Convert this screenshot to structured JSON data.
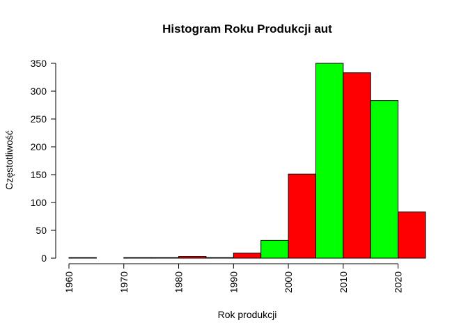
{
  "chart_data": {
    "type": "bar",
    "title": "Histogram Roku Produkcji aut",
    "xlabel": "Rok produkcji",
    "ylabel": "Częstotliwość",
    "bins": [
      {
        "start": 1960,
        "end": 1965,
        "count": 1
      },
      {
        "start": 1965,
        "end": 1970,
        "count": 0
      },
      {
        "start": 1970,
        "end": 1975,
        "count": 1
      },
      {
        "start": 1975,
        "end": 1980,
        "count": 1
      },
      {
        "start": 1980,
        "end": 1985,
        "count": 3
      },
      {
        "start": 1985,
        "end": 1990,
        "count": 1
      },
      {
        "start": 1990,
        "end": 1995,
        "count": 9
      },
      {
        "start": 1995,
        "end": 2000,
        "count": 32
      },
      {
        "start": 2000,
        "end": 2005,
        "count": 151
      },
      {
        "start": 2005,
        "end": 2010,
        "count": 350
      },
      {
        "start": 2010,
        "end": 2015,
        "count": 333
      },
      {
        "start": 2015,
        "end": 2020,
        "count": 283
      },
      {
        "start": 2020,
        "end": 2025,
        "count": 83
      }
    ],
    "bar_colors": [
      "#ff0000",
      "#00ff00"
    ],
    "xlim": [
      1960,
      2025
    ],
    "ylim": [
      0,
      350
    ],
    "x_ticks": [
      "1960",
      "1970",
      "1980",
      "1990",
      "2000",
      "2010",
      "2020"
    ],
    "y_ticks": [
      "0",
      "50",
      "100",
      "150",
      "200",
      "250",
      "300",
      "350"
    ],
    "grid": false,
    "legend": "none"
  }
}
